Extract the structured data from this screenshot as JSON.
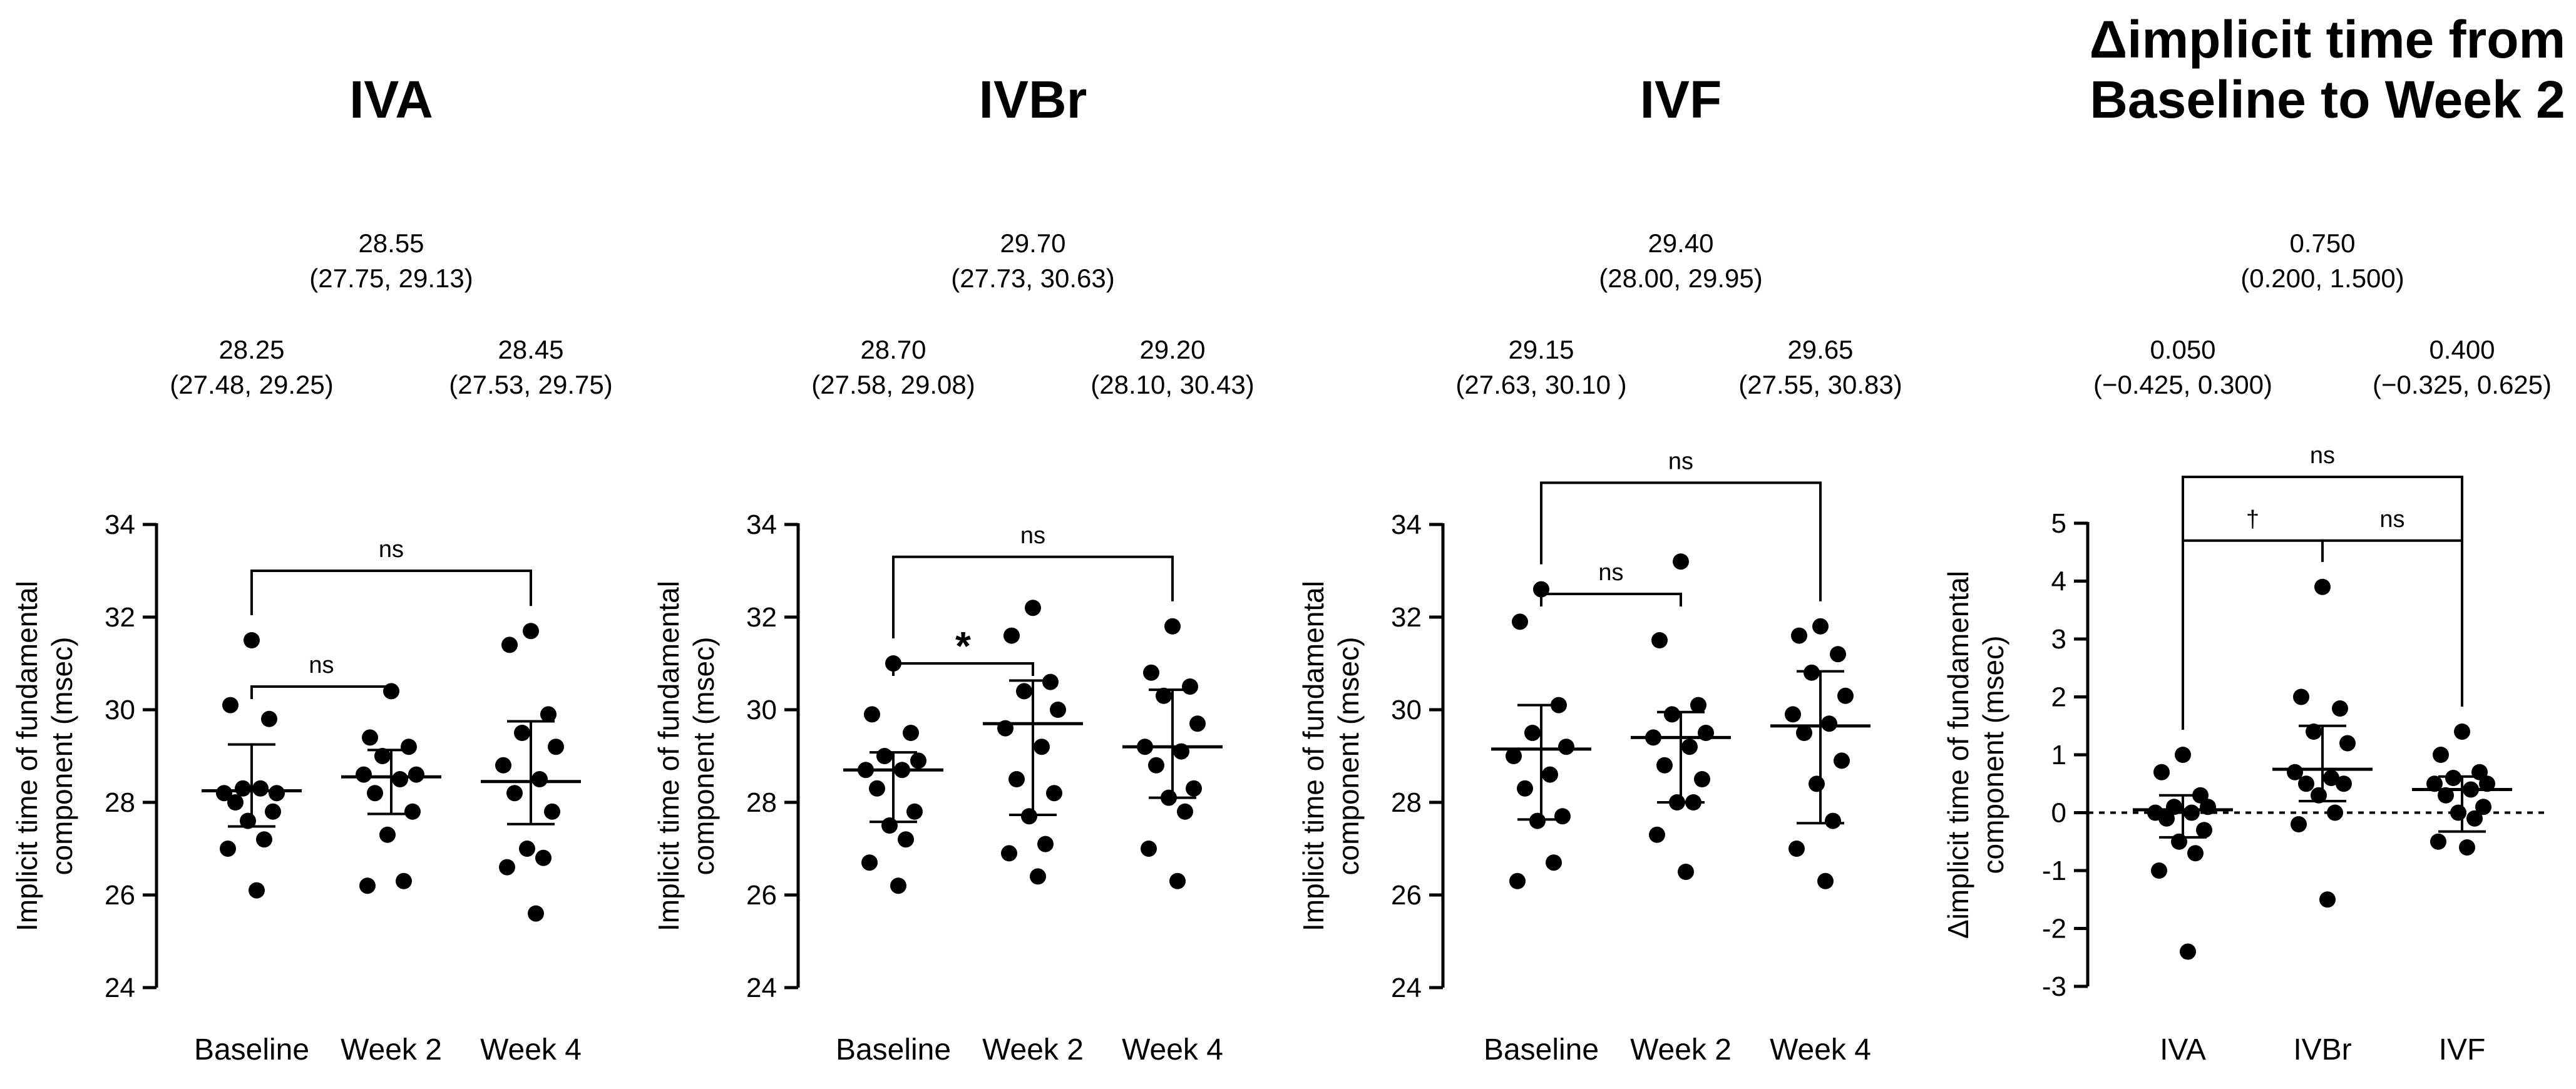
{
  "chart_data": [
    {
      "type": "scatter",
      "title": "IVA",
      "ylabel_lines": [
        "Implicit time of fundamental",
        "component (msec)"
      ],
      "ylim": [
        24,
        34
      ],
      "yticks": [
        24,
        26,
        28,
        30,
        32,
        34
      ],
      "categories": [
        "Baseline",
        "Week 2",
        "Week 4"
      ],
      "median_annotations": [
        {
          "group": "Week 2",
          "value": "28.55",
          "ci": "(27.75, 29.13)",
          "level": "top"
        },
        {
          "group": "Baseline",
          "value": "28.25",
          "ci": "(27.48, 29.25)",
          "level": "low"
        },
        {
          "group": "Week 4",
          "value": "28.45",
          "ci": "(27.53, 29.75)",
          "level": "low"
        }
      ],
      "series": [
        {
          "name": "Baseline",
          "median": 28.25,
          "ci": [
            27.48,
            29.25
          ],
          "values": [
            31.5,
            30.1,
            29.8,
            28.3,
            28.2,
            28.2,
            28.3,
            28.0,
            27.8,
            27.6,
            27.2,
            27.0,
            26.1
          ]
        },
        {
          "name": "Week 2",
          "median": 28.55,
          "ci": [
            27.75,
            29.13
          ],
          "values": [
            30.4,
            29.4,
            29.2,
            29.0,
            28.6,
            28.6,
            28.5,
            28.2,
            27.8,
            27.3,
            26.3,
            26.2
          ]
        },
        {
          "name": "Week 4",
          "median": 28.45,
          "ci": [
            27.53,
            29.75
          ],
          "values": [
            31.7,
            31.4,
            29.9,
            29.5,
            29.2,
            28.8,
            28.5,
            28.2,
            27.8,
            27.0,
            26.8,
            26.6,
            25.6
          ]
        }
      ],
      "brackets": [
        {
          "from": "Baseline",
          "to": "Week 2",
          "label": "ns",
          "y": 30.5
        },
        {
          "from": "Baseline",
          "to": "Week 4",
          "label": "ns",
          "y": 33.0
        }
      ]
    },
    {
      "type": "scatter",
      "title": "IVBr",
      "ylabel_lines": [
        "Implicit time of fundamental",
        "component (msec)"
      ],
      "ylim": [
        24,
        34
      ],
      "yticks": [
        24,
        26,
        28,
        30,
        32,
        34
      ],
      "categories": [
        "Baseline",
        "Week 2",
        "Week 4"
      ],
      "median_annotations": [
        {
          "group": "Week 2",
          "value": "29.70",
          "ci": "(27.73, 30.63)",
          "level": "top"
        },
        {
          "group": "Baseline",
          "value": "28.70",
          "ci": "(27.58, 29.08)",
          "level": "low"
        },
        {
          "group": "Week 4",
          "value": "29.20",
          "ci": "(28.10, 30.43)",
          "level": "low"
        }
      ],
      "series": [
        {
          "name": "Baseline",
          "median": 28.7,
          "ci": [
            27.58,
            29.08
          ],
          "values": [
            31.0,
            29.9,
            29.5,
            29.0,
            28.9,
            28.7,
            28.7,
            28.3,
            27.8,
            27.5,
            27.2,
            26.7,
            26.2
          ]
        },
        {
          "name": "Week 2",
          "median": 29.7,
          "ci": [
            27.73,
            30.63
          ],
          "values": [
            32.2,
            31.6,
            30.6,
            30.4,
            30.0,
            29.6,
            29.2,
            28.5,
            28.2,
            27.7,
            27.1,
            26.9,
            26.4
          ]
        },
        {
          "name": "Week 4",
          "median": 29.2,
          "ci": [
            28.1,
            30.43
          ],
          "values": [
            31.8,
            30.8,
            30.5,
            30.3,
            29.7,
            29.2,
            29.1,
            28.8,
            28.3,
            28.1,
            27.8,
            27.0,
            26.3
          ]
        }
      ],
      "brackets": [
        {
          "from": "Baseline",
          "to": "Week 2",
          "label": "*",
          "y": 31.0
        },
        {
          "from": "Baseline",
          "to": "Week 4",
          "label": "ns",
          "y": 33.3
        }
      ]
    },
    {
      "type": "scatter",
      "title": "IVF",
      "ylabel_lines": [
        "Implicit time of fundamental",
        "component (msec)"
      ],
      "ylim": [
        24,
        34
      ],
      "yticks": [
        24,
        26,
        28,
        30,
        32,
        34
      ],
      "categories": [
        "Baseline",
        "Week 2",
        "Week 4"
      ],
      "median_annotations": [
        {
          "group": "Week 2",
          "value": "29.40",
          "ci": "(28.00, 29.95)",
          "level": "top"
        },
        {
          "group": "Baseline",
          "value": "29.15",
          "ci": "(27.63, 30.10 )",
          "level": "low"
        },
        {
          "group": "Week 4",
          "value": "29.65",
          "ci": "(27.55, 30.83)",
          "level": "low"
        }
      ],
      "series": [
        {
          "name": "Baseline",
          "median": 29.15,
          "ci": [
            27.63,
            30.1
          ],
          "values": [
            32.6,
            31.9,
            30.1,
            29.5,
            29.2,
            29.0,
            28.6,
            28.3,
            27.7,
            27.6,
            26.7,
            26.3
          ]
        },
        {
          "name": "Week 2",
          "median": 29.4,
          "ci": [
            28.0,
            29.95
          ],
          "values": [
            33.2,
            31.5,
            30.1,
            29.9,
            29.5,
            29.4,
            29.2,
            28.8,
            28.5,
            28.0,
            28.0,
            27.3,
            26.5
          ]
        },
        {
          "name": "Week 4",
          "median": 29.65,
          "ci": [
            27.55,
            30.83
          ],
          "values": [
            31.8,
            31.6,
            31.2,
            30.8,
            30.3,
            29.9,
            29.7,
            29.5,
            28.9,
            28.4,
            27.6,
            27.0,
            26.3
          ]
        }
      ],
      "brackets": [
        {
          "from": "Baseline",
          "to": "Week 2",
          "label": "ns",
          "y": 32.5
        },
        {
          "from": "Baseline",
          "to": "Week 4",
          "label": "ns",
          "y": 34.9
        }
      ]
    },
    {
      "type": "scatter",
      "title_lines": [
        "Δimplicit time from",
        "Baseline to Week 2"
      ],
      "ylabel_lines": [
        "Δimplicit time of fundamental",
        "component (msec)"
      ],
      "ylim": [
        -3,
        5
      ],
      "yticks": [
        -3,
        -2,
        -1,
        0,
        1,
        2,
        3,
        4,
        5
      ],
      "zero_line": true,
      "categories": [
        "IVA",
        "IVBr",
        "IVF"
      ],
      "median_annotations": [
        {
          "group": "IVBr",
          "value": "0.750",
          "ci": "(0.200, 1.500)",
          "level": "top"
        },
        {
          "group": "IVA",
          "value": "0.050",
          "ci": "(−0.425, 0.300)",
          "level": "low"
        },
        {
          "group": "IVF",
          "value": "0.400",
          "ci": "(−0.325, 0.625)",
          "level": "low"
        }
      ],
      "series": [
        {
          "name": "IVA",
          "median": 0.05,
          "ci": [
            -0.425,
            0.3
          ],
          "values": [
            1.0,
            0.7,
            0.3,
            0.1,
            0.1,
            0.0,
            0.0,
            -0.1,
            -0.3,
            -0.5,
            -0.7,
            -1.0,
            -2.4
          ]
        },
        {
          "name": "IVBr",
          "median": 0.75,
          "ci": [
            0.2,
            1.5
          ],
          "values": [
            3.9,
            2.0,
            1.8,
            1.4,
            1.2,
            0.7,
            0.6,
            0.5,
            0.5,
            0.3,
            0.0,
            -0.2,
            -1.5
          ]
        },
        {
          "name": "IVF",
          "median": 0.4,
          "ci": [
            -0.325,
            0.625
          ],
          "values": [
            1.4,
            1.0,
            0.7,
            0.6,
            0.5,
            0.5,
            0.4,
            0.3,
            0.1,
            0.0,
            -0.1,
            -0.5,
            -0.6
          ]
        }
      ],
      "brackets": [
        {
          "from": "IVA",
          "to": "IVBr",
          "label": "†",
          "y": 4.7
        },
        {
          "from": "IVBr",
          "to": "IVF",
          "label": "ns",
          "y": 4.7
        },
        {
          "from": "IVA",
          "to": "IVF",
          "label": "ns",
          "y": 5.8
        }
      ]
    }
  ]
}
